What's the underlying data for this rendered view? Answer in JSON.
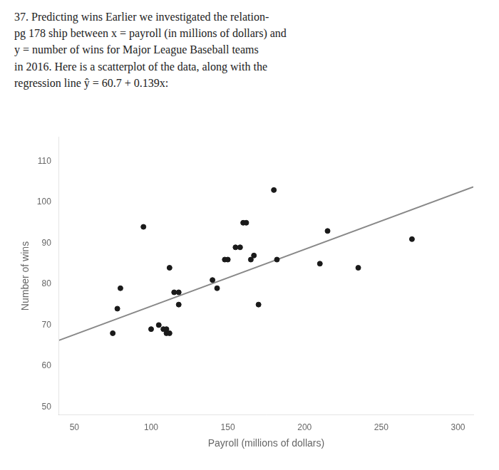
{
  "chart_data": {
    "type": "scatter",
    "annotations": [
      "37. Predicting wins Earlier we investigated the relation-",
      "pg 178 ship between x = payroll (in millions of dollars) and",
      "y = number of wins for Major League Baseball teams",
      "in 2016. Here is a scatterplot of the data, along with the",
      "regression line ŷ = 60.7 + 0.139x:"
    ],
    "x_label": "Payroll (millions of dollars)",
    "y_label": "Number of wins",
    "series": [
      {
        "type": "scatter",
        "color": "#1a1a1a",
        "x": [
          75,
          78,
          80,
          95,
          100,
          105,
          108,
          110,
          110,
          112,
          112,
          115,
          118,
          118,
          140,
          143,
          148,
          150,
          155,
          158,
          160,
          162,
          165,
          167,
          170,
          180,
          182,
          210,
          215,
          235,
          270
        ],
        "values": [
          68,
          74,
          79,
          94,
          69,
          70,
          69,
          69,
          68,
          68,
          84,
          78,
          78,
          75,
          81,
          79,
          86,
          86,
          89,
          89,
          95,
          95,
          86,
          87,
          75,
          103,
          86,
          85,
          93,
          84,
          91
        ]
      },
      {
        "type": "line",
        "color": "#888888",
        "x": [
          40,
          310
        ],
        "values": [
          66.26,
          103.79
        ]
      }
    ],
    "xlim": [
      40,
      310
    ],
    "ylim": [
      48,
      116
    ],
    "xticks": [
      50,
      100,
      150,
      200,
      250,
      300
    ],
    "yticks": [
      50,
      60,
      70,
      80,
      90,
      100,
      110
    ],
    "grid": false
  }
}
